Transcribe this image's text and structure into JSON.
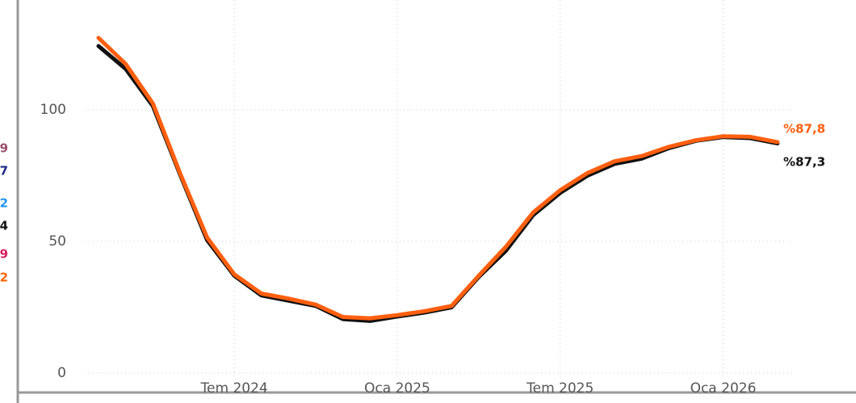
{
  "chart_data": {
    "type": "line",
    "categories": [
      null,
      null,
      null,
      null,
      null,
      "Tem 2024",
      null,
      null,
      null,
      null,
      null,
      "Oca 2025",
      null,
      null,
      null,
      null,
      null,
      "Tem 2025",
      null,
      null,
      null,
      null,
      null,
      "Oca 2026",
      null,
      null
    ],
    "series": [
      {
        "color": "#111111",
        "values": [
          124.3,
          115.6,
          101.5,
          75.5,
          50.5,
          37,
          29.5,
          27.5,
          25.5,
          20.5,
          19.8,
          21.5,
          23,
          25,
          36.5,
          46.5,
          60,
          68.5,
          75,
          79.5,
          81.5,
          85.5,
          88.3,
          89.7,
          89.3,
          87.3
        ],
        "value_labels": [
          null,
          null,
          null,
          null,
          null,
          null,
          null,
          null,
          null,
          null,
          null,
          null,
          null,
          null,
          null,
          null,
          null,
          null,
          null,
          null,
          null,
          null,
          null,
          null,
          null,
          "%87,3"
        ]
      },
      {
        "color": "#ff5f0f",
        "values": [
          127.4,
          117.5,
          102.5,
          76,
          51.5,
          37.5,
          30.2,
          28.3,
          26,
          21.3,
          20.8,
          22,
          23.5,
          25.5,
          37,
          48,
          61,
          69.5,
          76,
          80.5,
          82.5,
          86,
          88.5,
          90,
          89.8,
          87.8
        ],
        "value_labels": [
          null,
          null,
          null,
          null,
          null,
          null,
          null,
          null,
          null,
          null,
          null,
          null,
          null,
          null,
          null,
          null,
          null,
          null,
          null,
          null,
          null,
          null,
          null,
          null,
          null,
          "%87,8"
        ]
      }
    ],
    "ylim": [
      -7.4,
      141.8
    ],
    "yticks": [
      0,
      50,
      100
    ],
    "grid": true,
    "partial_labels": [
      {
        "text": "9",
        "color": "#9c4f6e"
      },
      {
        "text": "7",
        "color": "#1f2a8a"
      },
      {
        "text": "2",
        "color": "#2196f3"
      },
      {
        "text": "4",
        "color": "#111111"
      },
      {
        "text": "9",
        "color": "#d81b60"
      },
      {
        "text": "2",
        "color": "#ff6600"
      }
    ]
  }
}
